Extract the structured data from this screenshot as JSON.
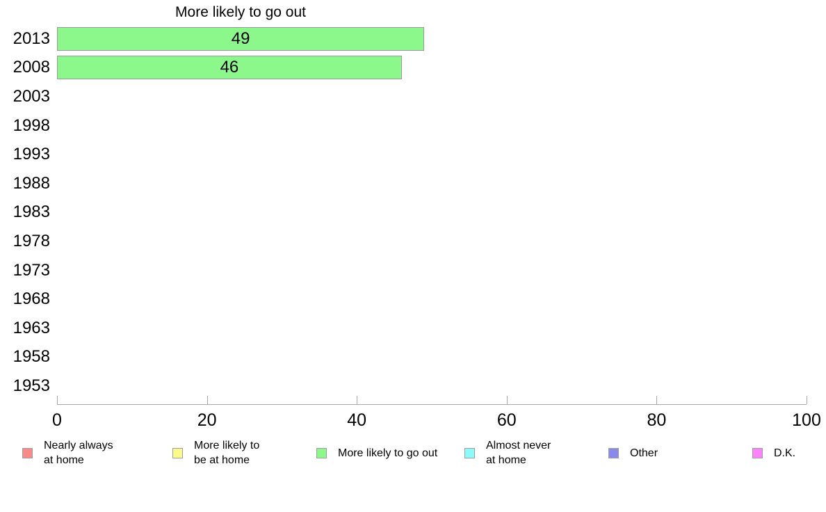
{
  "chart_data": {
    "type": "bar",
    "orientation": "horizontal",
    "title": "More likely to go out",
    "categories": [
      "2013",
      "2008",
      "2003",
      "1998",
      "1993",
      "1988",
      "1983",
      "1978",
      "1973",
      "1968",
      "1963",
      "1958",
      "1953"
    ],
    "values": [
      49,
      46,
      null,
      null,
      null,
      null,
      null,
      null,
      null,
      null,
      null,
      null,
      null
    ],
    "xlabel": "",
    "ylabel": "",
    "xlim": [
      0,
      100
    ],
    "xticks": [
      0,
      20,
      40,
      60,
      80,
      100
    ],
    "grid": false,
    "legend_position": "bottom",
    "bar_color": "#8cf88c",
    "bar_border_color": "#9a9a9a",
    "axis_color": "#a8a8a8"
  },
  "legend": {
    "items": [
      {
        "name": "nearly-always-at-home",
        "label_lines": [
          "Nearly always",
          "at home"
        ],
        "color": "#f98a8a"
      },
      {
        "name": "more-likely-to-be-at-home",
        "label_lines": [
          "More likely to",
          "be at home"
        ],
        "color": "#fafa8c"
      },
      {
        "name": "more-likely-to-go-out",
        "label_lines": [
          "More likely to go out"
        ],
        "color": "#8cf88c"
      },
      {
        "name": "almost-never-at-home",
        "label_lines": [
          "Almost never",
          "at home"
        ],
        "color": "#8cfafa"
      },
      {
        "name": "other",
        "label_lines": [
          "Other"
        ],
        "color": "#8a8aeb"
      },
      {
        "name": "dk",
        "label_lines": [
          "D.K."
        ],
        "color": "#fa82fa"
      }
    ]
  }
}
